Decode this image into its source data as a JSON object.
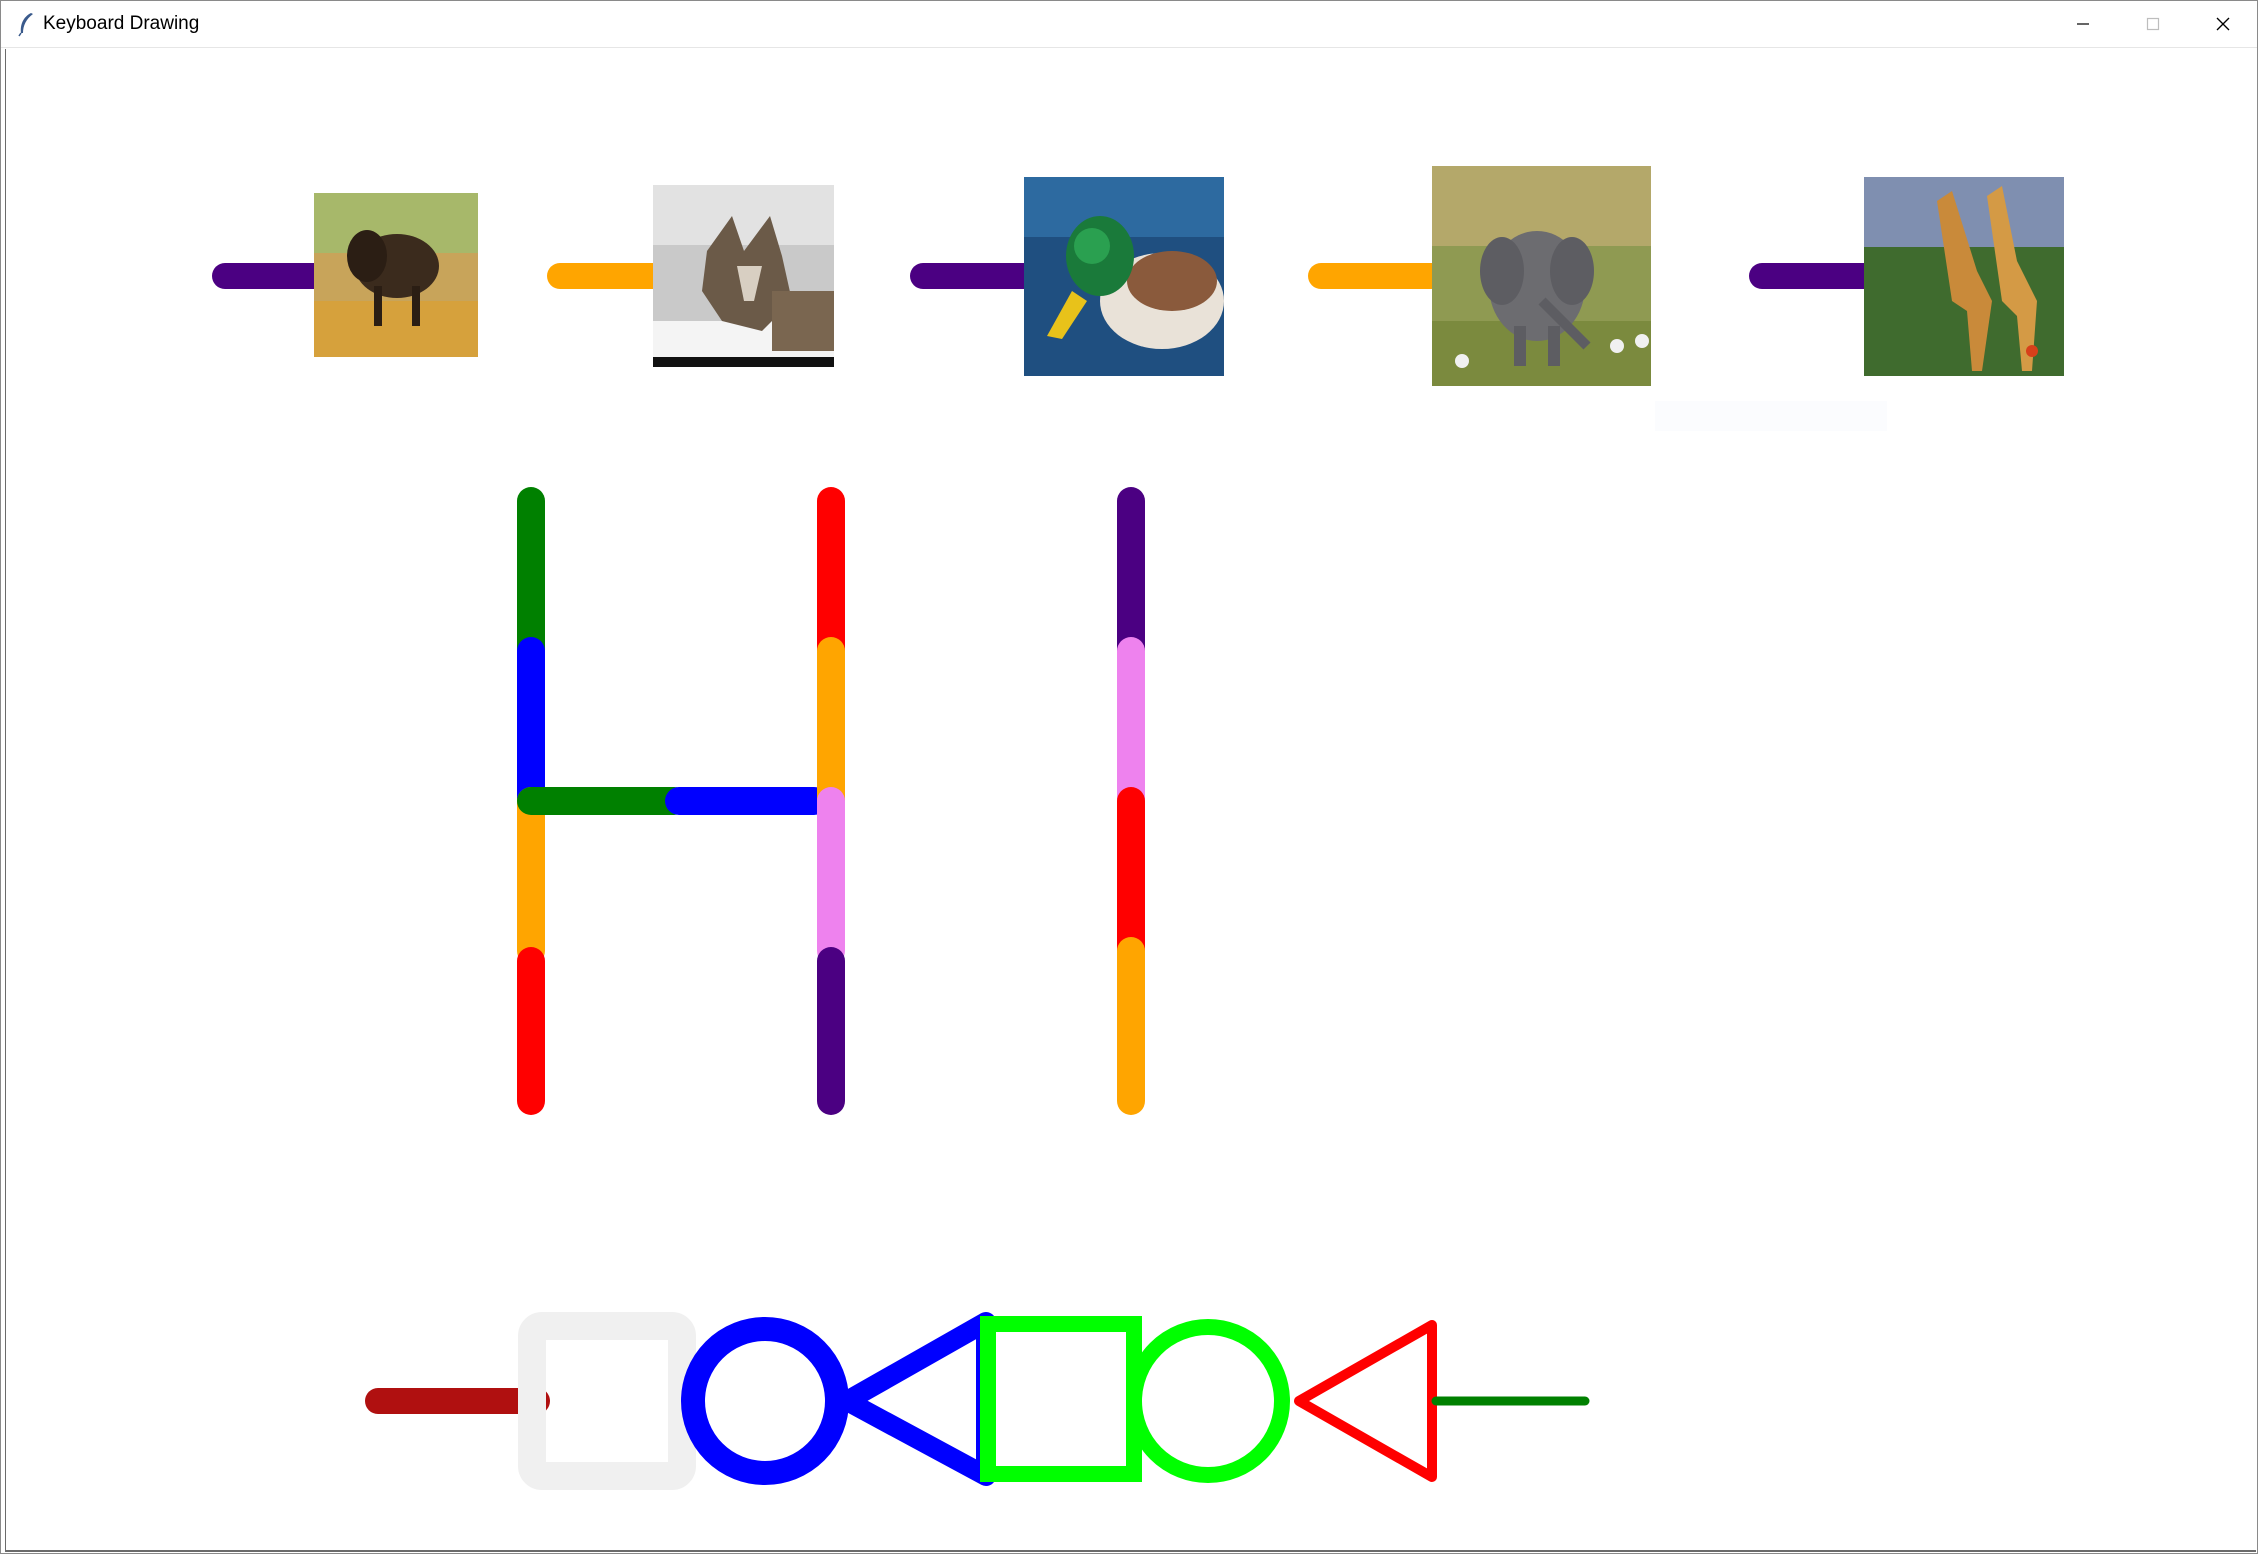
{
  "window": {
    "title": "Keyboard Drawing",
    "controls": [
      "minimize",
      "maximize",
      "close"
    ]
  },
  "canvas": {
    "background": "#ffffff",
    "top_row": [
      {
        "stroke_color": "#4b0082",
        "animal": "bison"
      },
      {
        "stroke_color": "#ffa500",
        "animal": "wolf"
      },
      {
        "stroke_color": "#4b0082",
        "animal": "mallard-duck"
      },
      {
        "stroke_color": "#ffa500",
        "animal": "elephant"
      },
      {
        "stroke_color": "#4b0082",
        "animal": "giraffe"
      }
    ],
    "letters": {
      "H_left_segments": [
        "#008000",
        "#0000ff",
        "#ffa500",
        "#ff0000"
      ],
      "H_crossbar": [
        "#008000",
        "#0000ff"
      ],
      "H_right_segments": [
        "#ff0000",
        "#ffa500",
        "#ee82ee",
        "#4b0082"
      ],
      "I_segments": [
        "#4b0082",
        "#ee82ee",
        "#ff0000",
        "#ffa500"
      ]
    },
    "bottom_row": [
      {
        "shape": "line",
        "color": "#b01010"
      },
      {
        "shape": "square",
        "color": "#f0f0f0"
      },
      {
        "shape": "circle",
        "color": "#0000ff"
      },
      {
        "shape": "triangle",
        "color": "#0000ff"
      },
      {
        "shape": "square",
        "color": "#00ff00"
      },
      {
        "shape": "circle",
        "color": "#00ff00"
      },
      {
        "shape": "triangle",
        "color": "#ff0000"
      },
      {
        "shape": "line",
        "color": "#008000"
      }
    ]
  }
}
